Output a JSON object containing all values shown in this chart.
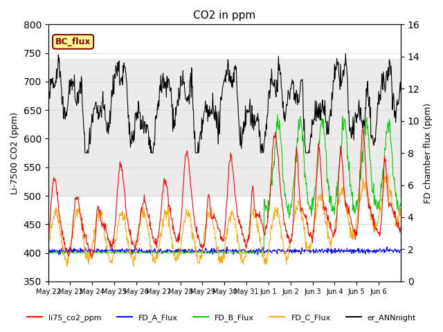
{
  "title": "CO2 in ppm",
  "ylabel_left": "Li-7500 CO2 (ppm)",
  "ylabel_right": "FD chamber flux (ppm)",
  "ylim_left": [
    350,
    800
  ],
  "ylim_right": [
    0,
    16
  ],
  "yticks_left": [
    350,
    400,
    450,
    500,
    550,
    600,
    650,
    700,
    750,
    800
  ],
  "yticks_right": [
    0,
    2,
    4,
    6,
    8,
    10,
    12,
    14,
    16
  ],
  "shaded_band": [
    500,
    740
  ],
  "bc_flux_box_color": "#ffff99",
  "bc_flux_text_color": "#8B0000",
  "colors": {
    "li75": "#ff0000",
    "FD_A": "#0000ff",
    "FD_B": "#00cc00",
    "FD_C": "#ffa500",
    "er_ANN": "#000000"
  },
  "legend_labels": [
    "li75_co2_ppm",
    "FD_A_Flux",
    "FD_B_Flux",
    "FD_C_Flux",
    "er_ANNnight"
  ],
  "x_tick_labels": [
    "May 22",
    "May 23",
    "May 24",
    "May 25",
    "May 26",
    "May 27",
    "May 28",
    "May 29",
    "May 30",
    "May 31",
    "Jun 1",
    "Jun 2",
    "Jun 3",
    "Jun 4",
    "Jun 5",
    "Jun 6"
  ],
  "n_days": 16,
  "bg_color": "#ffffff"
}
